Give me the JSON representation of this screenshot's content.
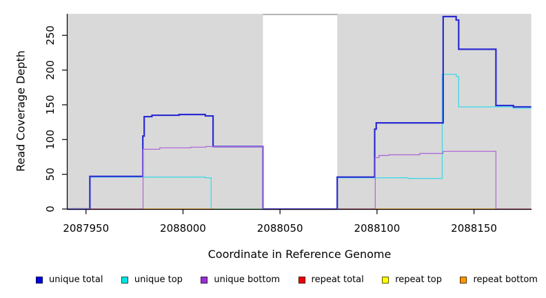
{
  "chart_data": {
    "type": "line",
    "subtype": "step-coverage",
    "title": "",
    "xlabel": "Coordinate in Reference Genome",
    "ylabel": "Read Coverage Depth",
    "x_ticks": [
      2087950,
      2088000,
      2088050,
      2088100,
      2088150
    ],
    "y_ticks": [
      0,
      50,
      100,
      150,
      200,
      250
    ],
    "xlim": [
      2087940.5,
      2088179.5
    ],
    "ylim": [
      0,
      281
    ],
    "grid": false,
    "legend_position": "bottom",
    "plot_bg": "#d9d9d9",
    "axis_color": "#000000",
    "mask_region": {
      "from": 2088041.2,
      "to": 2088079.5,
      "color": "#ffffff",
      "top_line_color": "#9a9a9a",
      "top_value": 280
    },
    "series": [
      {
        "name": "unique total",
        "color": "#2a2ad2",
        "width": 2.2,
        "steps": [
          [
            2087940.5,
            0
          ],
          [
            2087952,
            47
          ],
          [
            2087979.3,
            105
          ],
          [
            2087980,
            133
          ],
          [
            2087984,
            135
          ],
          [
            2087998,
            136
          ],
          [
            2088011.5,
            134
          ],
          [
            2088015.5,
            90
          ],
          [
            2088041.2,
            0
          ],
          [
            2088079.5,
            46
          ],
          [
            2088098.8,
            115
          ],
          [
            2088099.6,
            124
          ],
          [
            2088134.1,
            277
          ],
          [
            2088140.8,
            272
          ],
          [
            2088142.1,
            230
          ],
          [
            2088161.3,
            149
          ],
          [
            2088170.3,
            147
          ]
        ]
      },
      {
        "name": "unique top",
        "color": "#3fd9e8",
        "width": 1.3,
        "steps": [
          [
            2087940.5,
            0
          ],
          [
            2087952,
            46
          ],
          [
            2088011.5,
            45
          ],
          [
            2088014.5,
            0
          ],
          [
            2088079.5,
            45
          ],
          [
            2088116,
            44
          ],
          [
            2088133.6,
            194
          ],
          [
            2088140.8,
            191
          ],
          [
            2088142.1,
            147
          ],
          [
            2088170.3,
            145
          ]
        ]
      },
      {
        "name": "unique bottom",
        "color": "#b06ad8",
        "width": 1.3,
        "steps": [
          [
            2087940.5,
            0
          ],
          [
            2087979.4,
            86
          ],
          [
            2087988,
            88
          ],
          [
            2088004,
            89
          ],
          [
            2088012,
            90
          ],
          [
            2088041.2,
            0
          ],
          [
            2088099.1,
            74
          ],
          [
            2088101,
            77
          ],
          [
            2088106,
            78
          ],
          [
            2088122,
            80
          ],
          [
            2088134.1,
            83
          ],
          [
            2088161.3,
            0
          ]
        ]
      },
      {
        "name": "repeat total",
        "color": "#dd0000",
        "width": 1,
        "steps": [
          [
            2087940.5,
            0
          ]
        ]
      },
      {
        "name": "repeat top",
        "color": "#ffff00",
        "width": 1,
        "steps": [
          [
            2087940.5,
            0
          ]
        ]
      },
      {
        "name": "repeat bottom",
        "color": "#ff9900",
        "width": 1,
        "steps": [
          [
            2087940.5,
            0
          ]
        ]
      }
    ],
    "baseline_segments": [
      {
        "from": 2087940.5,
        "to": 2087952,
        "color": "#9a95ee"
      },
      {
        "from": 2087952,
        "to": 2087979.4,
        "color": "#cf4f7e"
      },
      {
        "from": 2087979.4,
        "to": 2088015.5,
        "color": "#ff8c00"
      },
      {
        "from": 2088015.5,
        "to": 2088041.2,
        "color": "#85c285"
      },
      {
        "from": 2088041.2,
        "to": 2088079.5,
        "color": "#7a5cf0"
      },
      {
        "from": 2088079.5,
        "to": 2088099.1,
        "color": "#b8455f"
      },
      {
        "from": 2088099.1,
        "to": 2088161.3,
        "color": "#ff8c00"
      },
      {
        "from": 2088161.3,
        "to": 2088179.5,
        "color": "#c9547a"
      }
    ],
    "legend": [
      {
        "label": "unique total",
        "color": "#0000e0"
      },
      {
        "label": "unique top",
        "color": "#00e5e5"
      },
      {
        "label": "unique bottom",
        "color": "#9b30d0"
      },
      {
        "label": "repeat total",
        "color": "#ee0000"
      },
      {
        "label": "repeat top",
        "color": "#ffff00"
      },
      {
        "label": "repeat bottom",
        "color": "#ff9800"
      }
    ]
  }
}
